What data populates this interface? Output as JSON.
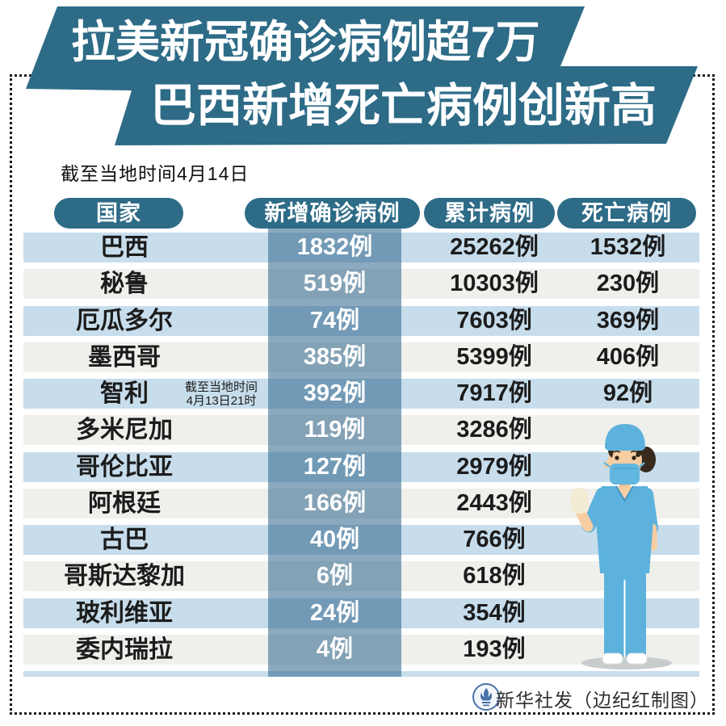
{
  "title": {
    "line1": "拉美新冠确诊病例超7万",
    "line2": "巴西新增死亡病例创新高"
  },
  "subtitle": "截至当地时间4月14日",
  "table": {
    "columns": [
      "国家",
      "新增确诊病例",
      "累计病例",
      "死亡病例"
    ],
    "unit": "例",
    "rows": [
      {
        "country": "巴西",
        "new": "1832例",
        "total": "25262例",
        "deaths": "1532例"
      },
      {
        "country": "秘鲁",
        "new": "519例",
        "total": "10303例",
        "deaths": "230例"
      },
      {
        "country": "厄瓜多尔",
        "new": "74例",
        "total": "7603例",
        "deaths": "369例"
      },
      {
        "country": "墨西哥",
        "new": "385例",
        "total": "5399例",
        "deaths": "406例"
      },
      {
        "country": "智利",
        "note_line1": "截至当地时间",
        "note_line2": "4月13日21时",
        "new": "392例",
        "total": "7917例",
        "deaths": "92例"
      },
      {
        "country": "多米尼加",
        "new": "119例",
        "total": "3286例",
        "deaths": ""
      },
      {
        "country": "哥伦比亚",
        "new": "127例",
        "total": "2979例",
        "deaths": ""
      },
      {
        "country": "阿根廷",
        "new": "166例",
        "total": "2443例",
        "deaths": ""
      },
      {
        "country": "古巴",
        "new": "40例",
        "total": "766例",
        "deaths": ""
      },
      {
        "country": "哥斯达黎加",
        "new": "6例",
        "total": "618例",
        "deaths": ""
      },
      {
        "country": "玻利维亚",
        "new": "24例",
        "total": "354例",
        "deaths": ""
      },
      {
        "country": "委内瑞拉",
        "new": "4例",
        "total": "193例",
        "deaths": ""
      }
    ]
  },
  "credit": {
    "text": "新华社发（边纪红制图）",
    "logo": "xinhua-emblem-icon"
  },
  "icons": {
    "logo": "xinhua-emblem-icon",
    "illustration": "nurse-mask-illustration"
  },
  "colors": {
    "banner_teal": "#2d6b87",
    "band_blue": "#c7ddec",
    "band_gray": "#efefec",
    "highlight_overlay": "rgba(44,99,139,0.55)",
    "text_dark": "#1c1c1c",
    "white": "#ffffff",
    "nurse_scrub": "#5cb2dc",
    "nurse_mask": "#62b7e0",
    "nurse_skin": "#f7cda2",
    "nurse_hair": "#382a1d",
    "nurse_glove": "#f3ecd4",
    "emblem_blue": "#4a72a8"
  },
  "chart_data": {
    "type": "table",
    "title": "拉美新冠确诊病例超7万 巴西新增死亡病例创新高",
    "as_of": "截至当地时间4月14日",
    "columns": [
      "国家",
      "新增确诊病例",
      "累计病例",
      "死亡病例"
    ],
    "unit": "例",
    "rows": [
      [
        "巴西",
        1832,
        25262,
        1532
      ],
      [
        "秘鲁",
        519,
        10303,
        230
      ],
      [
        "厄瓜多尔",
        74,
        7603,
        369
      ],
      [
        "墨西哥",
        385,
        5399,
        406
      ],
      [
        "智利",
        392,
        7917,
        92
      ],
      [
        "多米尼加",
        119,
        3286,
        null
      ],
      [
        "哥伦比亚",
        127,
        2979,
        null
      ],
      [
        "阿根廷",
        166,
        2443,
        null
      ],
      [
        "古巴",
        40,
        766,
        null
      ],
      [
        "哥斯达黎加",
        6,
        618,
        null
      ],
      [
        "玻利维亚",
        24,
        354,
        null
      ],
      [
        "委内瑞拉",
        4,
        193,
        null
      ]
    ],
    "notes": {
      "智利": "截至当地时间4月13日21时"
    },
    "source": "新华社发（边纪红制图）"
  }
}
